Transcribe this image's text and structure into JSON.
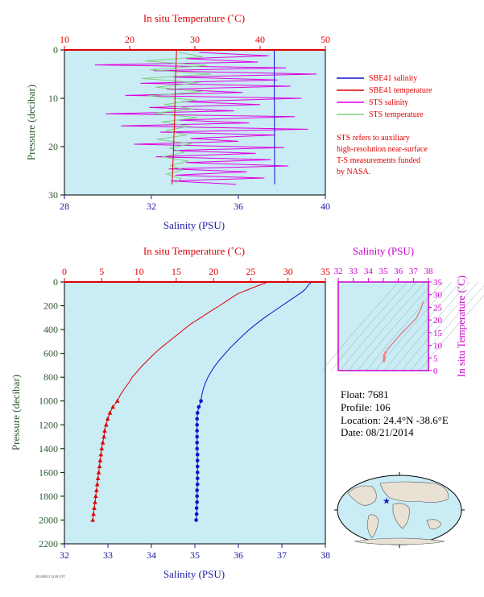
{
  "colors": {
    "salinity": "#1010c8",
    "temperature": "#e00000",
    "sts_salinity": "#e000e0",
    "sts_temperature": "#80d080",
    "plot_bg": "#c9ecf5",
    "ts_axis": "#cc00cc"
  },
  "float_info": {
    "float_line": "Float:  7681",
    "profile_line": "Profile:  106",
    "location_line": "Location:  24.4°N  -38.6°E",
    "date_line": "Date:  08/21/2014"
  },
  "footer_text": "2014/08/21 12:00 UTC",
  "chart_data": [
    {
      "type": "line",
      "title": "",
      "top_axis_label": "In situ Temperature (˚C)",
      "top_ticks": [
        "10",
        "20",
        "30",
        "40",
        "50"
      ],
      "top_range": [
        10,
        50
      ],
      "xlabel": "Salinity (PSU)",
      "x_ticks": [
        "28",
        "32",
        "36",
        "40"
      ],
      "xlim": [
        28,
        40
      ],
      "ylabel": "Pressure (decibar)",
      "y_ticks": [
        "0",
        "10",
        "20",
        "30"
      ],
      "ylim": [
        0,
        30
      ],
      "legend_position": "right",
      "legend": [
        {
          "name": "SBE41 salinity",
          "color": "#1010c8"
        },
        {
          "name": "SBE41 temperature",
          "color": "#e00000"
        },
        {
          "name": "STS salinity",
          "color": "#e000e0"
        },
        {
          "name": "STS temperature",
          "color": "#80d080"
        }
      ],
      "note_lines": [
        "STS refers to auxiliary",
        "high-resolution near-surface",
        "T-S measurements funded",
        "by NASA."
      ],
      "series": [
        {
          "name": "STS salinity",
          "axis": "salinity",
          "p": [
            0.5,
            1.2,
            1.8,
            2.5,
            3.1,
            3.7,
            4.3,
            5.0,
            5.6,
            6.2,
            6.9,
            7.5,
            8.1,
            8.8,
            9.4,
            10.0,
            10.7,
            11.3,
            11.9,
            12.6,
            13.2,
            13.8,
            14.5,
            15.1,
            15.7,
            16.4,
            17.0,
            17.6,
            18.3,
            18.9,
            19.5,
            20.2,
            20.8,
            21.4,
            22.1,
            22.7,
            23.3,
            24.0,
            24.6,
            25.2,
            25.9,
            26.5,
            27.1,
            27.8
          ],
          "values": [
            34.2,
            37.4,
            33.6,
            36.9,
            29.4,
            38.2,
            32.1,
            39.6,
            33.0,
            37.8,
            31.5,
            38.4,
            32.7,
            36.2,
            30.8,
            38.9,
            33.4,
            37.0,
            31.9,
            35.8,
            29.9,
            38.6,
            33.2,
            36.5,
            30.6,
            39.2,
            32.4,
            37.7,
            33.8,
            36.0,
            31.2,
            38.1,
            33.0,
            36.8,
            32.2,
            37.5,
            33.6,
            38.3,
            32.8,
            36.4,
            33.1,
            37.2,
            32.9,
            35.9
          ]
        },
        {
          "name": "STS temperature",
          "axis": "temperature",
          "p": [
            0.5,
            1.4,
            2.3,
            3.2,
            4.1,
            5.0,
            5.9,
            6.8,
            7.7,
            8.6,
            9.5,
            10.4,
            11.3,
            12.2,
            13.1,
            14.0,
            14.9,
            15.8,
            16.7,
            17.6,
            18.5,
            19.4,
            20.3,
            21.2,
            22.1,
            23.0,
            23.9,
            24.8,
            25.7,
            26.6,
            27.5
          ],
          "values": [
            27.6,
            31.2,
            22.4,
            31.8,
            23.1,
            32.5,
            21.9,
            30.6,
            24.0,
            31.1,
            22.8,
            30.2,
            25.3,
            29.8,
            23.6,
            30.4,
            24.9,
            29.1,
            25.6,
            28.7,
            24.2,
            29.5,
            26.1,
            28.4,
            25.0,
            29.0,
            26.3,
            28.1,
            25.7,
            27.9,
            27.0
          ]
        },
        {
          "name": "SBE41 temperature",
          "axis": "temperature",
          "p": [
            0,
            7,
            14,
            21,
            27.8
          ],
          "values": [
            27.2,
            27.0,
            26.9,
            26.7,
            26.5
          ]
        },
        {
          "name": "SBE41 salinity",
          "axis": "salinity",
          "p": [
            0,
            7,
            14,
            21,
            27.8
          ],
          "values": [
            37.65,
            37.65,
            37.66,
            37.66,
            37.67
          ]
        }
      ]
    },
    {
      "type": "line",
      "title": "",
      "top_axis_label": "In situ Temperature (˚C)",
      "top_ticks": [
        "0",
        "5",
        "10",
        "15",
        "20",
        "25",
        "30",
        "35"
      ],
      "top_range": [
        0,
        35
      ],
      "xlabel": "Salinity (PSU)",
      "x_ticks": [
        "32",
        "33",
        "34",
        "35",
        "36",
        "37",
        "38"
      ],
      "xlim": [
        32,
        38
      ],
      "ylabel": "Pressure (decibar)",
      "y_ticks": [
        "0",
        "200",
        "400",
        "600",
        "800",
        "1000",
        "1200",
        "1400",
        "1600",
        "1800",
        "2000",
        "2200"
      ],
      "ylim": [
        0,
        2200
      ],
      "series": [
        {
          "name": "SBE41 temperature",
          "axis": "temperature",
          "p": [
            0,
            10,
            20,
            40,
            60,
            80,
            100,
            150,
            200,
            250,
            300,
            350,
            400,
            450,
            500,
            550,
            600,
            650,
            700,
            750,
            800,
            850,
            900,
            950,
            1000
          ],
          "values": [
            27.3,
            26.9,
            26.4,
            25.6,
            24.8,
            24.0,
            23.2,
            22.0,
            20.8,
            19.5,
            18.3,
            17.0,
            16.0,
            15.0,
            14.0,
            13.0,
            12.1,
            11.3,
            10.5,
            9.8,
            9.1,
            8.6,
            8.0,
            7.5,
            7.1
          ]
        },
        {
          "name": "SBE41 salinity",
          "axis": "salinity",
          "p": [
            0,
            10,
            20,
            40,
            60,
            80,
            100,
            150,
            200,
            250,
            300,
            350,
            400,
            450,
            500,
            550,
            600,
            650,
            700,
            750,
            800,
            850,
            900,
            950,
            1000
          ],
          "values": [
            37.66,
            37.66,
            37.62,
            37.58,
            37.54,
            37.48,
            37.4,
            37.2,
            37.0,
            36.8,
            36.6,
            36.42,
            36.25,
            36.1,
            35.96,
            35.82,
            35.7,
            35.58,
            35.47,
            35.38,
            35.3,
            35.24,
            35.19,
            35.16,
            35.14
          ]
        },
        {
          "name": "SBE41 temperature deep",
          "axis": "temperature",
          "p": [
            1000,
            1050,
            1100,
            1150,
            1200,
            1250,
            1300,
            1350,
            1400,
            1450,
            1500,
            1550,
            1600,
            1650,
            1700,
            1750,
            1800,
            1850,
            1900,
            1950,
            2000
          ],
          "values": [
            7.1,
            6.5,
            6.1,
            5.8,
            5.6,
            5.4,
            5.3,
            5.15,
            5.0,
            4.9,
            4.8,
            4.7,
            4.6,
            4.5,
            4.4,
            4.3,
            4.2,
            4.1,
            4.0,
            3.9,
            3.8
          ]
        },
        {
          "name": "SBE41 salinity deep",
          "axis": "salinity",
          "p": [
            1000,
            1050,
            1100,
            1150,
            1200,
            1250,
            1300,
            1350,
            1400,
            1450,
            1500,
            1550,
            1600,
            1650,
            1700,
            1750,
            1800,
            1850,
            1900,
            1950,
            2000
          ],
          "values": [
            35.14,
            35.09,
            35.06,
            35.05,
            35.05,
            35.05,
            35.05,
            35.05,
            35.05,
            35.06,
            35.06,
            35.06,
            35.06,
            35.06,
            35.06,
            35.05,
            35.05,
            35.05,
            35.04,
            35.04,
            35.03
          ]
        }
      ]
    },
    {
      "type": "scatter",
      "title": "",
      "top_axis_label": "Salinity (PSU)",
      "x_ticks": [
        "32",
        "33",
        "34",
        "35",
        "36",
        "37",
        "38"
      ],
      "xlim": [
        32,
        38
      ],
      "right_axis_label": "In situ Temperature (˚C)",
      "y_ticks": [
        "0",
        "5",
        "10",
        "15",
        "20",
        "25",
        "30",
        "35"
      ],
      "ylim": [
        0,
        35
      ],
      "density_contours": true,
      "series": [
        {
          "name": "T-S curve",
          "salinity": [
            37.66,
            37.62,
            37.54,
            37.4,
            37.2,
            37.0,
            36.8,
            36.6,
            36.42,
            36.25,
            36.1,
            35.96,
            35.82,
            35.7,
            35.58,
            35.47,
            35.38,
            35.3,
            35.24,
            35.19,
            35.14,
            35.06,
            35.05,
            35.05,
            35.06,
            35.06,
            35.05,
            35.03
          ],
          "temperature": [
            27.3,
            26.9,
            24.8,
            23.2,
            20.8,
            19.5,
            18.3,
            17.0,
            16.0,
            15.0,
            14.0,
            13.0,
            12.1,
            11.3,
            10.5,
            9.8,
            9.1,
            8.6,
            8.0,
            7.5,
            7.1,
            6.1,
            5.6,
            5.3,
            5.0,
            4.6,
            4.2,
            3.8
          ]
        }
      ]
    },
    {
      "type": "other",
      "title": "",
      "map": "world",
      "marker": {
        "lat": 24.4,
        "lon": -38.6,
        "color": "#1010c8"
      }
    }
  ]
}
